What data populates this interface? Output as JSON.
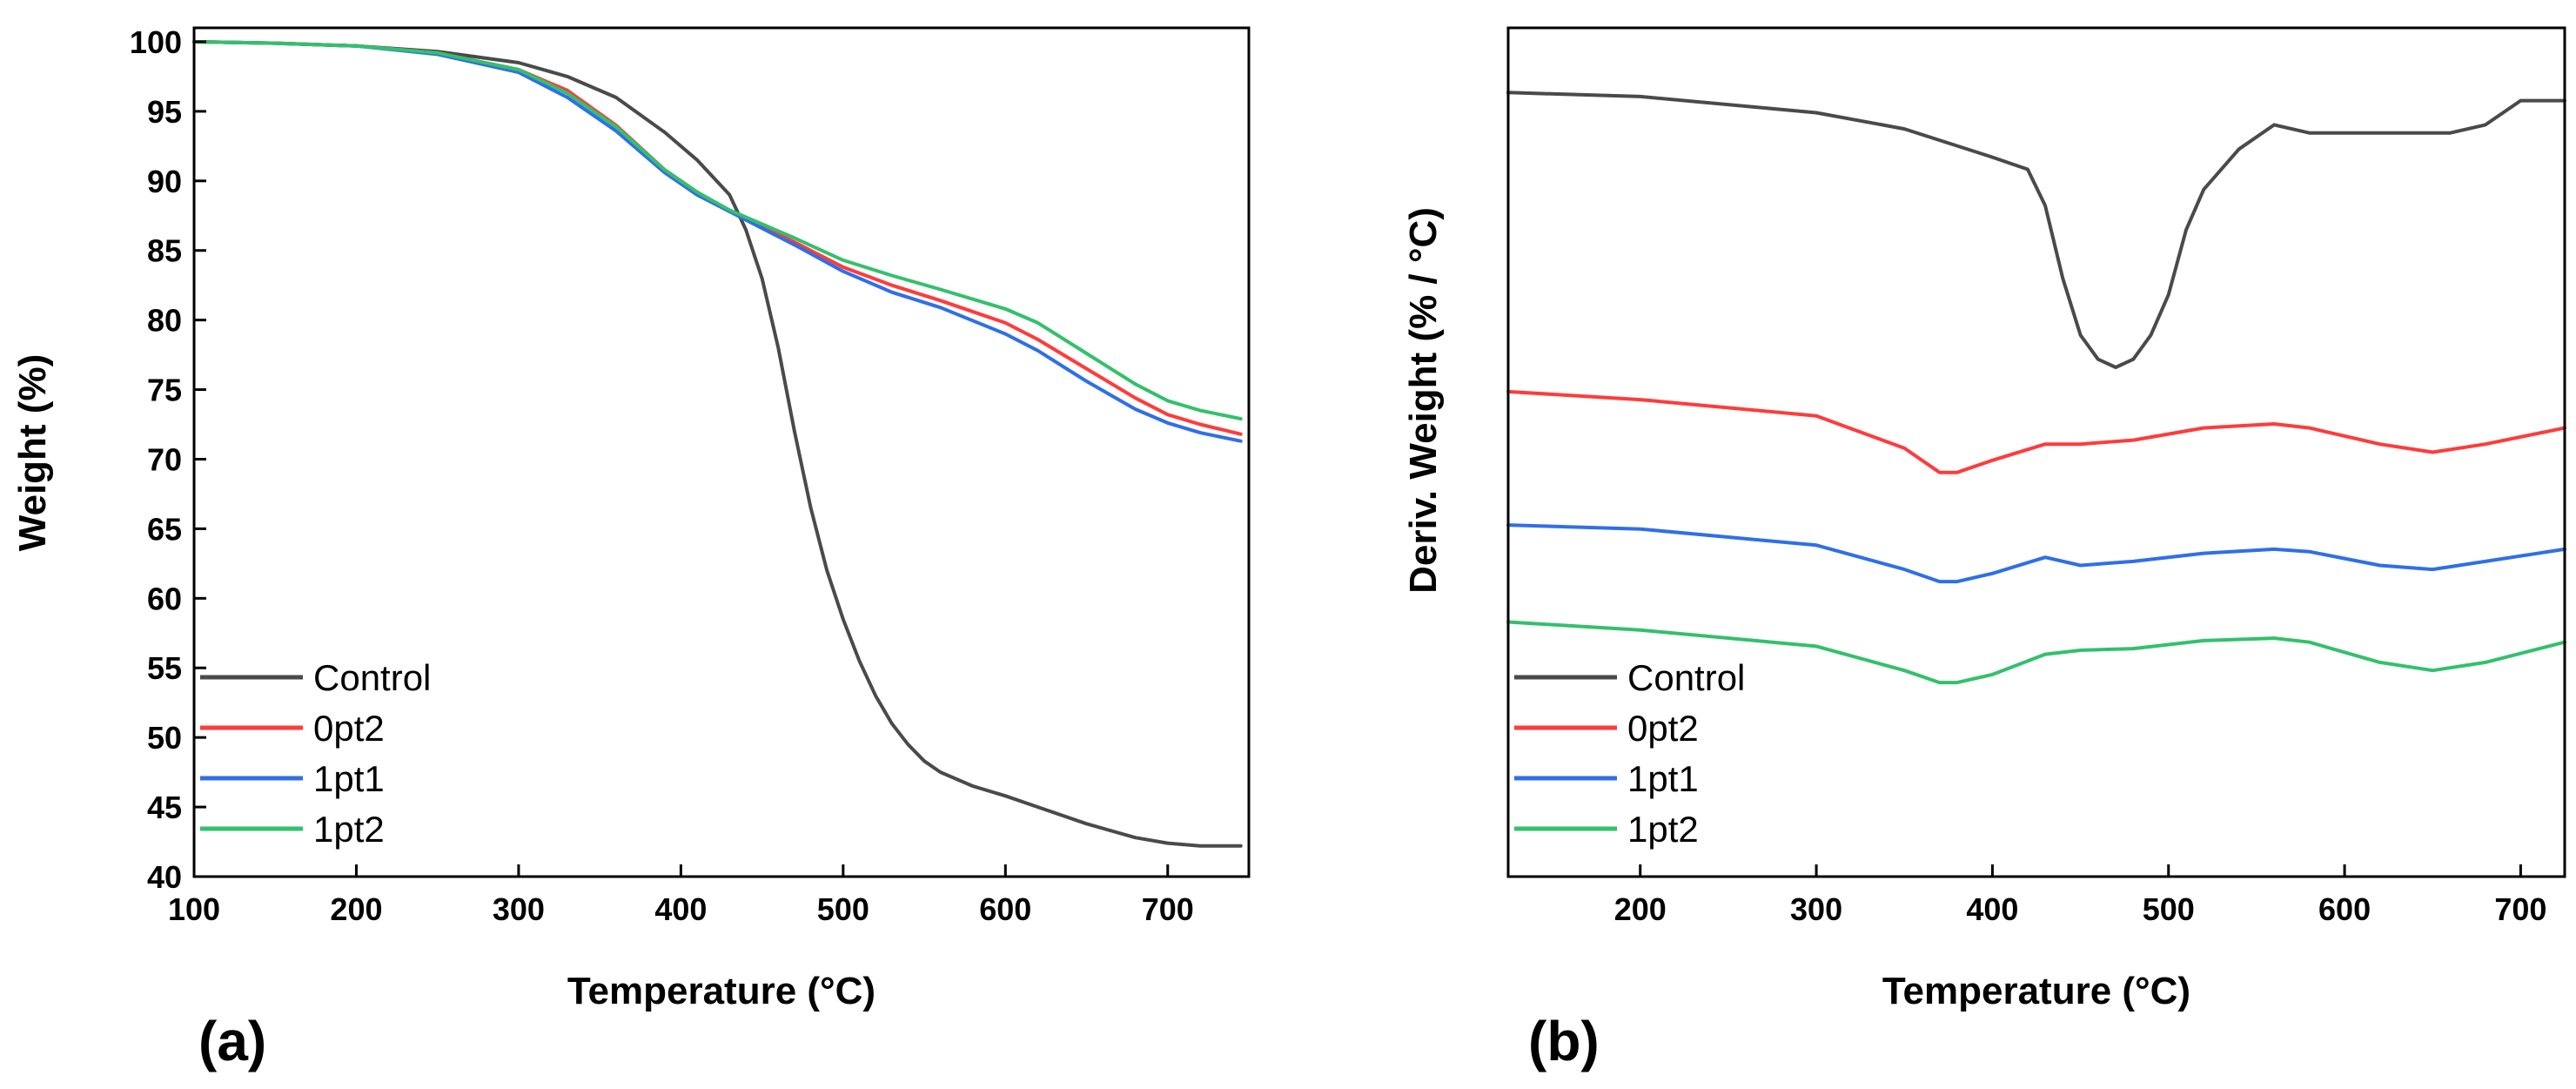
{
  "colors": {
    "Control": "#4a4a4a",
    "0pt2": "#ff3b3b",
    "1pt1": "#2f6fe8",
    "1pt2": "#33c06c"
  },
  "chart_data": [
    {
      "type": "line",
      "panel_label": "(a)",
      "xlabel": "Temperature (°C)",
      "ylabel": "Weight (%)",
      "xlim": [
        100,
        750
      ],
      "ylim": [
        40,
        101
      ],
      "xticks": [
        100,
        200,
        300,
        400,
        500,
        600,
        700
      ],
      "yticks": [
        40,
        45,
        50,
        55,
        60,
        65,
        70,
        75,
        80,
        85,
        90,
        95,
        100
      ],
      "grid": false,
      "legend_position": "bottom-left",
      "series": [
        {
          "name": "Control",
          "x": [
            100,
            150,
            200,
            250,
            300,
            330,
            360,
            390,
            410,
            430,
            440,
            450,
            460,
            470,
            480,
            490,
            500,
            510,
            520,
            530,
            540,
            550,
            560,
            580,
            600,
            620,
            650,
            680,
            700,
            720,
            745
          ],
          "y": [
            100,
            99.9,
            99.7,
            99.3,
            98.5,
            97.5,
            96.0,
            93.5,
            91.5,
            89.0,
            86.5,
            83.0,
            78.0,
            72.0,
            66.5,
            62.0,
            58.5,
            55.5,
            53.0,
            51.0,
            49.5,
            48.3,
            47.5,
            46.5,
            45.8,
            45.0,
            43.8,
            42.8,
            42.4,
            42.2,
            42.2
          ]
        },
        {
          "name": "0pt2",
          "x": [
            100,
            150,
            200,
            250,
            300,
            330,
            360,
            390,
            410,
            430,
            450,
            470,
            500,
            530,
            560,
            600,
            620,
            650,
            680,
            700,
            720,
            745
          ],
          "y": [
            100,
            99.9,
            99.7,
            99.2,
            98.0,
            96.5,
            94.0,
            90.8,
            89.2,
            87.8,
            86.7,
            85.6,
            83.8,
            82.5,
            81.4,
            79.8,
            78.6,
            76.5,
            74.4,
            73.2,
            72.5,
            71.8
          ]
        },
        {
          "name": "1pt1",
          "x": [
            100,
            150,
            200,
            250,
            300,
            330,
            360,
            390,
            410,
            430,
            450,
            470,
            500,
            530,
            560,
            600,
            620,
            650,
            680,
            700,
            720,
            745
          ],
          "y": [
            100,
            99.9,
            99.7,
            99.1,
            97.8,
            96.0,
            93.6,
            90.6,
            89.0,
            87.8,
            86.6,
            85.4,
            83.5,
            82.0,
            80.9,
            79.0,
            77.8,
            75.6,
            73.6,
            72.6,
            71.9,
            71.3
          ]
        },
        {
          "name": "1pt2",
          "x": [
            100,
            150,
            200,
            250,
            300,
            330,
            360,
            390,
            410,
            430,
            450,
            470,
            500,
            530,
            560,
            600,
            620,
            650,
            680,
            700,
            720,
            745
          ],
          "y": [
            100,
            99.9,
            99.7,
            99.2,
            98.0,
            96.3,
            93.9,
            90.8,
            89.2,
            87.9,
            86.9,
            85.9,
            84.3,
            83.2,
            82.2,
            80.8,
            79.8,
            77.6,
            75.4,
            74.2,
            73.5,
            72.9
          ]
        }
      ]
    },
    {
      "type": "line",
      "panel_label": "(b)",
      "xlabel": "Temperature (°C)",
      "ylabel": "Deriv. Weight (% / °C)",
      "xlim": [
        125,
        725
      ],
      "ylim": [
        -1.0,
        0.05
      ],
      "xticks": [
        200,
        300,
        400,
        500,
        600,
        700
      ],
      "yticks": [],
      "grid": false,
      "legend_position": "bottom-left",
      "series": [
        {
          "name": "Control",
          "x": [
            125,
            200,
            300,
            350,
            400,
            420,
            430,
            440,
            450,
            460,
            470,
            480,
            490,
            500,
            510,
            520,
            540,
            560,
            580,
            600,
            640,
            660,
            680,
            700,
            725
          ],
          "y": [
            -0.03,
            -0.035,
            -0.055,
            -0.075,
            -0.11,
            -0.125,
            -0.17,
            -0.26,
            -0.33,
            -0.36,
            -0.37,
            -0.36,
            -0.33,
            -0.28,
            -0.2,
            -0.15,
            -0.1,
            -0.07,
            -0.08,
            -0.08,
            -0.08,
            -0.08,
            -0.07,
            -0.04,
            -0.04
          ]
        },
        {
          "name": "0pt2",
          "x": [
            125,
            200,
            300,
            350,
            370,
            380,
            400,
            430,
            450,
            480,
            520,
            560,
            580,
            620,
            650,
            680,
            725
          ],
          "y": [
            -0.4,
            -0.41,
            -0.43,
            -0.47,
            -0.5,
            -0.5,
            -0.485,
            -0.465,
            -0.465,
            -0.46,
            -0.445,
            -0.44,
            -0.445,
            -0.465,
            -0.475,
            -0.465,
            -0.445
          ]
        },
        {
          "name": "1pt1",
          "x": [
            125,
            200,
            300,
            350,
            370,
            380,
            400,
            430,
            450,
            480,
            520,
            560,
            580,
            620,
            650,
            680,
            725
          ],
          "y": [
            -0.565,
            -0.57,
            -0.59,
            -0.62,
            -0.635,
            -0.635,
            -0.625,
            -0.605,
            -0.615,
            -0.61,
            -0.6,
            -0.595,
            -0.598,
            -0.615,
            -0.62,
            -0.61,
            -0.595
          ]
        },
        {
          "name": "1pt2",
          "x": [
            125,
            200,
            300,
            350,
            370,
            380,
            400,
            430,
            450,
            480,
            520,
            560,
            580,
            620,
            650,
            680,
            725
          ],
          "y": [
            -0.685,
            -0.695,
            -0.715,
            -0.745,
            -0.76,
            -0.76,
            -0.75,
            -0.725,
            -0.72,
            -0.718,
            -0.708,
            -0.705,
            -0.71,
            -0.735,
            -0.745,
            -0.735,
            -0.71
          ]
        }
      ]
    }
  ]
}
